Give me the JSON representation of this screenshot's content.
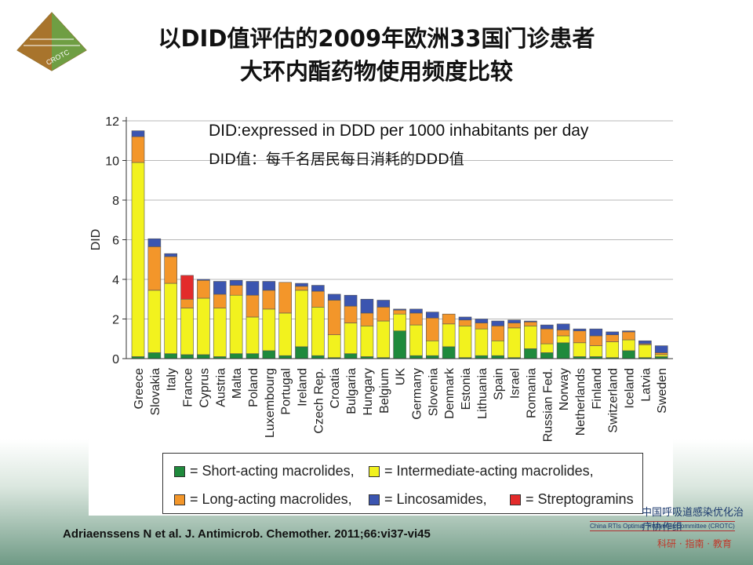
{
  "slide": {
    "title_line1": "以DID值评估的2009年欧洲33国门诊患者",
    "title_line2": "大环内酯药物使用频度比较",
    "logo_text": "CROTC",
    "note_en": "DID:expressed in DDD per 1000 inhabitants per day",
    "note_cn": "DID值：每千名居民每日消耗的DDD值",
    "citation": "Adriaenssens N et al. J. Antimicrob. Chemother. 2011;66:vi37-vi45",
    "org_cn": "中国呼吸道感染优化治疗协作组",
    "org_en": "China RTIs Optimal Treatment Committee (CROTC)",
    "org_motto": "科研 · 指南 · 教育"
  },
  "colors": {
    "short": "#1f8a3c",
    "intermediate": "#f2f21e",
    "long": "#f3962a",
    "lincosamides": "#3b55b0",
    "streptogramins": "#e32b2b"
  },
  "chart_data": {
    "type": "bar",
    "stacked": true,
    "ylabel": "DID",
    "ylim": [
      0,
      12
    ],
    "yticks": [
      0,
      2,
      4,
      6,
      8,
      10,
      12
    ],
    "grid": true,
    "categories": [
      "Greece",
      "Slovakia",
      "Italy",
      "France",
      "Cyprus",
      "Austria",
      "Malta",
      "Poland",
      "Luxembourg",
      "Portugal",
      "Ireland",
      "Czech Rep.",
      "Croatia",
      "Bulgaria",
      "Hungary",
      "Belgium",
      "UK",
      "Germany",
      "Slovenia",
      "Denmark",
      "Estonia",
      "Lithuania",
      "Spain",
      "Israel",
      "Romania",
      "Russian Fed.",
      "Norway",
      "Netherlands",
      "Finland",
      "Switzerland",
      "Iceland",
      "Latvia",
      "Sweden"
    ],
    "series": [
      {
        "name": "= Short-acting macrolides,",
        "key": "short",
        "values": [
          0.1,
          0.3,
          0.25,
          0.2,
          0.2,
          0.1,
          0.25,
          0.25,
          0.4,
          0.15,
          0.6,
          0.15,
          0.05,
          0.25,
          0.1,
          0.05,
          1.4,
          0.15,
          0.15,
          0.6,
          0.05,
          0.15,
          0.15,
          0.05,
          0.5,
          0.3,
          0.8,
          0.1,
          0.1,
          0.05,
          0.4,
          0.05,
          0.1
        ]
      },
      {
        "name": "= Intermediate-acting macrolides,",
        "key": "intermediate",
        "values": [
          9.8,
          3.15,
          3.55,
          2.35,
          2.85,
          2.45,
          2.95,
          1.85,
          2.1,
          2.15,
          2.85,
          2.45,
          1.15,
          1.55,
          1.55,
          1.85,
          0.85,
          1.55,
          0.75,
          1.15,
          1.6,
          1.35,
          0.75,
          1.5,
          1.15,
          0.45,
          0.35,
          0.7,
          0.55,
          0.8,
          0.55,
          0.65,
          0.1
        ]
      },
      {
        "name": "= Long-acting macrolides,",
        "key": "long",
        "values": [
          1.3,
          2.2,
          1.35,
          0.45,
          0.9,
          0.7,
          0.5,
          1.1,
          0.95,
          1.55,
          0.2,
          0.8,
          1.75,
          0.85,
          0.65,
          0.7,
          0.2,
          0.6,
          1.15,
          0.5,
          0.3,
          0.3,
          0.75,
          0.25,
          0.2,
          0.75,
          0.3,
          0.6,
          0.5,
          0.35,
          0.4,
          0.05,
          0.1
        ]
      },
      {
        "name": "= Lincosamides,",
        "key": "lincosamides",
        "values": [
          0.3,
          0.4,
          0.15,
          0.0,
          0.05,
          0.65,
          0.25,
          0.7,
          0.45,
          0.0,
          0.15,
          0.3,
          0.3,
          0.55,
          0.7,
          0.35,
          0.05,
          0.2,
          0.3,
          0.0,
          0.15,
          0.2,
          0.25,
          0.15,
          0.05,
          0.2,
          0.3,
          0.1,
          0.35,
          0.15,
          0.05,
          0.15,
          0.35
        ]
      },
      {
        "name": "= Streptogramins",
        "key": "streptogramins",
        "values": [
          0,
          0,
          0,
          1.2,
          0,
          0,
          0,
          0,
          0,
          0,
          0,
          0,
          0,
          0,
          0,
          0,
          0,
          0,
          0,
          0,
          0,
          0,
          0,
          0,
          0,
          0,
          0,
          0,
          0,
          0,
          0,
          0,
          0
        ]
      }
    ],
    "legend_position": "bottom"
  }
}
